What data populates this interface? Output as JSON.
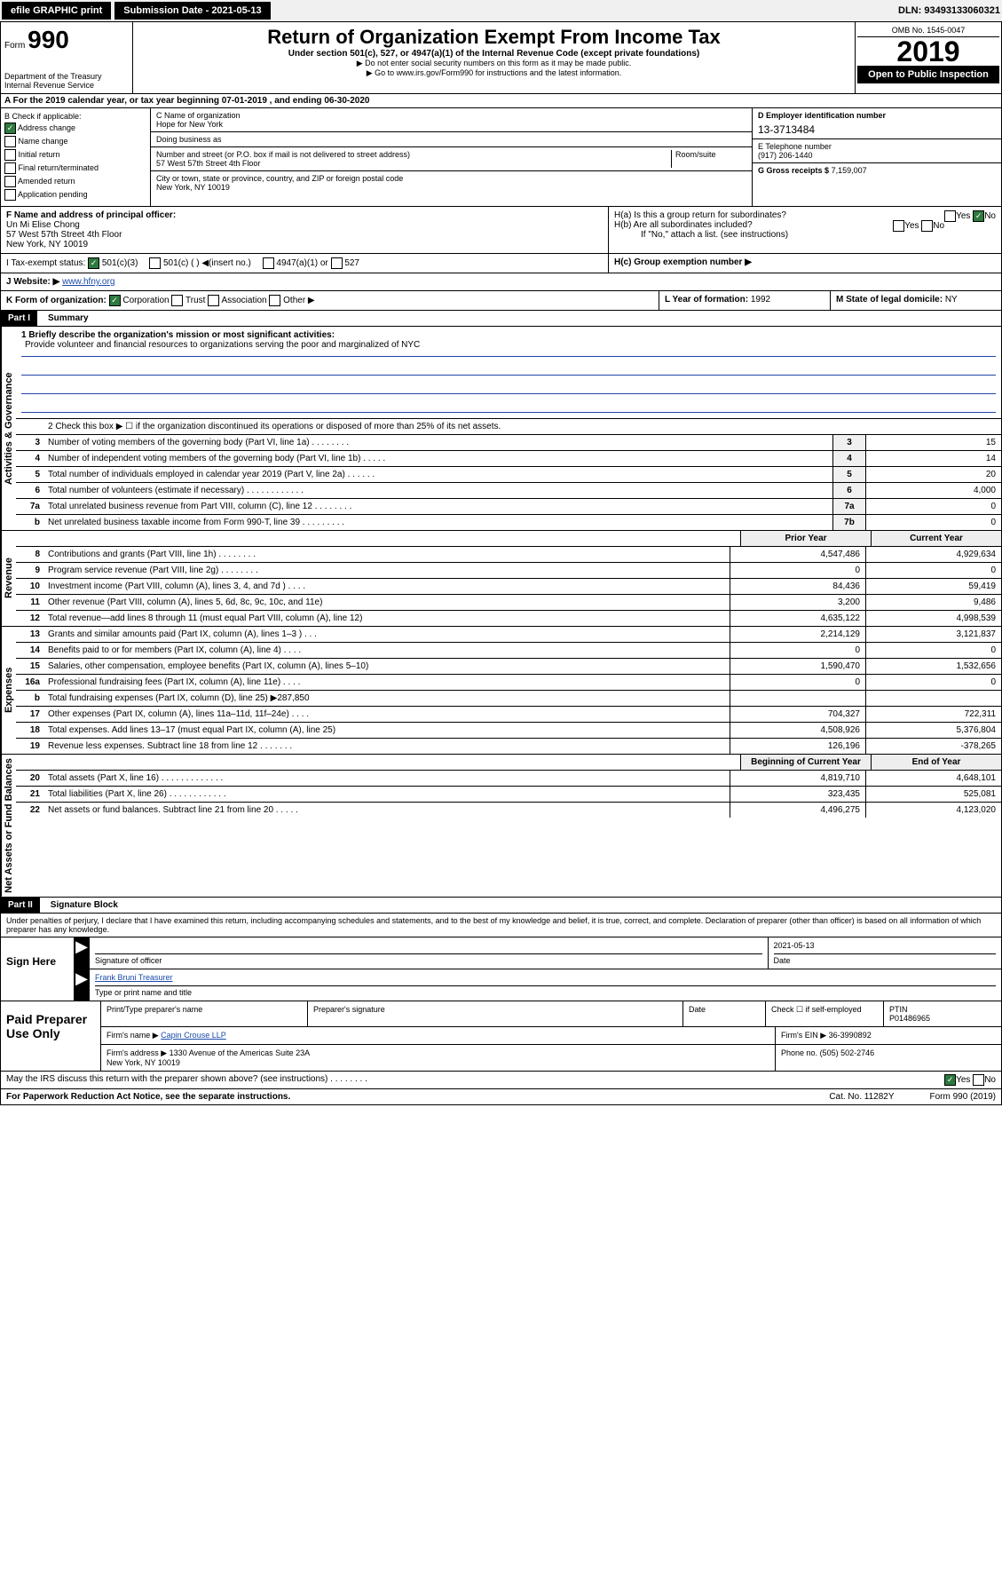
{
  "toolbar": {
    "efile": "efile GRAPHIC print",
    "sub_label": "Submission Date - 2021-05-13",
    "dln": "DLN: 93493133060321"
  },
  "header": {
    "form": "Form",
    "number": "990",
    "dept": "Department of the Treasury\nInternal Revenue Service",
    "title": "Return of Organization Exempt From Income Tax",
    "subtitle": "Under section 501(c), 527, or 4947(a)(1) of the Internal Revenue Code (except private foundations)",
    "note1": "▶ Do not enter social security numbers on this form as it may be made public.",
    "note2": "▶ Go to www.irs.gov/Form990 for instructions and the latest information.",
    "omb": "OMB No. 1545-0047",
    "year": "2019",
    "open": "Open to Public Inspection"
  },
  "sectionA": "A For the 2019 calendar year, or tax year beginning 07-01-2019    , and ending 06-30-2020",
  "boxB": {
    "title": "B Check if applicable:",
    "items": [
      {
        "label": "Address change",
        "checked": true
      },
      {
        "label": "Name change",
        "checked": false
      },
      {
        "label": "Initial return",
        "checked": false
      },
      {
        "label": "Final return/terminated",
        "checked": false
      },
      {
        "label": "Amended return",
        "checked": false
      },
      {
        "label": "Application pending",
        "checked": false
      }
    ]
  },
  "boxC": {
    "name_label": "C Name of organization",
    "name": "Hope for New York",
    "dba_label": "Doing business as",
    "dba": "",
    "addr_label": "Number and street (or P.O. box if mail is not delivered to street address)",
    "addr": "57 West 57th Street 4th Floor",
    "room_label": "Room/suite",
    "city_label": "City or town, state or province, country, and ZIP or foreign postal code",
    "city": "New York, NY  10019"
  },
  "boxD": {
    "label": "D Employer identification number",
    "val": "13-3713484"
  },
  "boxE": {
    "label": "E Telephone number",
    "val": "(917) 206-1440"
  },
  "boxG": {
    "label": "G Gross receipts $",
    "val": "7,159,007"
  },
  "boxF": {
    "label": "F  Name and address of principal officer:",
    "name": "Un Mi Elise Chong",
    "addr": "57 West 57th Street 4th Floor\nNew York, NY  10019"
  },
  "boxH": {
    "a": "H(a)  Is this a group return for subordinates?",
    "a_yes": "Yes",
    "a_no": "No",
    "b": "H(b)  Are all subordinates included?",
    "b_yes": "Yes",
    "b_no": "No",
    "b_note": "If \"No,\" attach a list. (see instructions)",
    "c": "H(c)  Group exemption number ▶"
  },
  "boxI": {
    "label": "I  Tax-exempt status:",
    "opt1": "501(c)(3)",
    "opt2": "501(c) (   ) ◀(insert no.)",
    "opt3": "4947(a)(1) or",
    "opt4": "527"
  },
  "boxJ": {
    "label": "J  Website: ▶",
    "val": "www.hfny.org"
  },
  "boxK": {
    "label": "K Form of organization:",
    "opts": [
      "Corporation",
      "Trust",
      "Association",
      "Other ▶"
    ]
  },
  "boxL": {
    "label": "L Year of formation:",
    "val": "1992"
  },
  "boxM": {
    "label": "M State of legal domicile:",
    "val": "NY"
  },
  "partI": {
    "header": "Part I",
    "title": "Summary",
    "mission_label": "1  Briefly describe the organization's mission or most significant activities:",
    "mission": "Provide volunteer and financial resources to organizations serving the poor and marginalized of NYC",
    "line2": "2   Check this box ▶ ☐  if the organization discontinued its operations or disposed of more than 25% of its net assets.",
    "sections": {
      "gov": "Activities & Governance",
      "rev": "Revenue",
      "exp": "Expenses",
      "net": "Net Assets or Fund Balances"
    },
    "col_headers": {
      "prior": "Prior Year",
      "current": "Current Year",
      "begin": "Beginning of Current Year",
      "end": "End of Year"
    },
    "rows_gov": [
      {
        "n": "3",
        "label": "Number of voting members of the governing body (Part VI, line 1a)   .    .    .    .    .    .    .    .",
        "box": "3",
        "v": "15"
      },
      {
        "n": "4",
        "label": "Number of independent voting members of the governing body (Part VI, line 1b)   .    .    .    .    .",
        "box": "4",
        "v": "14"
      },
      {
        "n": "5",
        "label": "Total number of individuals employed in calendar year 2019 (Part V, line 2a)  .    .    .    .    .    .",
        "box": "5",
        "v": "20"
      },
      {
        "n": "6",
        "label": "Total number of volunteers (estimate if necessary)   .    .    .    .    .    .    .    .    .    .    .    .",
        "box": "6",
        "v": "4,000"
      },
      {
        "n": "7a",
        "label": "Total unrelated business revenue from Part VIII, column (C), line 12   .    .    .    .    .    .    .    .",
        "box": "7a",
        "v": "0"
      },
      {
        "n": "b",
        "label": "Net unrelated business taxable income from Form 990-T, line 39   .    .    .    .    .    .    .    .    .",
        "box": "7b",
        "v": "0"
      }
    ],
    "rows_rev": [
      {
        "n": "8",
        "label": "Contributions and grants (Part VIII, line 1h)   .    .    .    .    .    .    .    .",
        "p": "4,547,486",
        "c": "4,929,634"
      },
      {
        "n": "9",
        "label": "Program service revenue (Part VIII, line 2g)   .    .    .    .    .    .    .    .",
        "p": "0",
        "c": "0"
      },
      {
        "n": "10",
        "label": "Investment income (Part VIII, column (A), lines 3, 4, and 7d )  .    .    .    .",
        "p": "84,436",
        "c": "59,419"
      },
      {
        "n": "11",
        "label": "Other revenue (Part VIII, column (A), lines 5, 6d, 8c, 9c, 10c, and 11e)",
        "p": "3,200",
        "c": "9,486"
      },
      {
        "n": "12",
        "label": "Total revenue—add lines 8 through 11 (must equal Part VIII, column (A), line 12)",
        "p": "4,635,122",
        "c": "4,998,539"
      }
    ],
    "rows_exp": [
      {
        "n": "13",
        "label": "Grants and similar amounts paid (Part IX, column (A), lines 1–3 )   .    .    .",
        "p": "2,214,129",
        "c": "3,121,837"
      },
      {
        "n": "14",
        "label": "Benefits paid to or for members (Part IX, column (A), line 4)   .    .    .    .",
        "p": "0",
        "c": "0"
      },
      {
        "n": "15",
        "label": "Salaries, other compensation, employee benefits (Part IX, column (A), lines 5–10)",
        "p": "1,590,470",
        "c": "1,532,656"
      },
      {
        "n": "16a",
        "label": "Professional fundraising fees (Part IX, column (A), line 11e)   .    .    .    .",
        "p": "0",
        "c": "0"
      },
      {
        "n": "b",
        "label": "Total fundraising expenses (Part IX, column (D), line 25) ▶287,850",
        "p": "",
        "c": ""
      },
      {
        "n": "17",
        "label": "Other expenses (Part IX, column (A), lines 11a–11d, 11f–24e)   .    .    .    .",
        "p": "704,327",
        "c": "722,311"
      },
      {
        "n": "18",
        "label": "Total expenses. Add lines 13–17 (must equal Part IX, column (A), line 25)",
        "p": "4,508,926",
        "c": "5,376,804"
      },
      {
        "n": "19",
        "label": "Revenue less expenses. Subtract line 18 from line 12   .    .    .    .    .    .    .",
        "p": "126,196",
        "c": "-378,265"
      }
    ],
    "rows_net": [
      {
        "n": "20",
        "label": "Total assets (Part X, line 16)   .    .    .    .    .    .    .    .    .    .    .    .    .",
        "p": "4,819,710",
        "c": "4,648,101"
      },
      {
        "n": "21",
        "label": "Total liabilities (Part X, line 26)   .    .    .    .    .    .    .    .    .    .    .    .",
        "p": "323,435",
        "c": "525,081"
      },
      {
        "n": "22",
        "label": "Net assets or fund balances. Subtract line 21 from line 20   .    .    .    .    .",
        "p": "4,496,275",
        "c": "4,123,020"
      }
    ]
  },
  "partII": {
    "header": "Part II",
    "title": "Signature Block",
    "perjury": "Under penalties of perjury, I declare that I have examined this return, including accompanying schedules and statements, and to the best of my knowledge and belief, it is true, correct, and complete. Declaration of preparer (other than officer) is based on all information of which preparer has any knowledge.",
    "sign_here": "Sign Here",
    "sig_officer": "Signature of officer",
    "date": "2021-05-13",
    "date_label": "Date",
    "officer_name": "Frank Bruni  Treasurer",
    "officer_type": "Type or print name and title",
    "paid": "Paid Preparer Use Only",
    "prep_name_label": "Print/Type preparer's name",
    "prep_sig_label": "Preparer's signature",
    "prep_date_label": "Date",
    "prep_check": "Check ☐ if self-employed",
    "ptin_label": "PTIN",
    "ptin": "P01486965",
    "firm_name_label": "Firm's name     ▶",
    "firm_name": "Capin Crouse LLP",
    "firm_ein_label": "Firm's EIN ▶",
    "firm_ein": "36-3990892",
    "firm_addr_label": "Firm's address ▶",
    "firm_addr": "1330 Avenue of the Americas Suite 23A\nNew York, NY  10019",
    "phone_label": "Phone no.",
    "phone": "(505) 502-2746",
    "discuss": "May the IRS discuss this return with the preparer shown above? (see instructions)    .    .    .    .    .    .    .    .",
    "discuss_yes": "Yes",
    "discuss_no": "No",
    "paperwork": "For Paperwork Reduction Act Notice, see the separate instructions.",
    "cat": "Cat. No. 11282Y",
    "form_foot": "Form 990 (2019)"
  }
}
